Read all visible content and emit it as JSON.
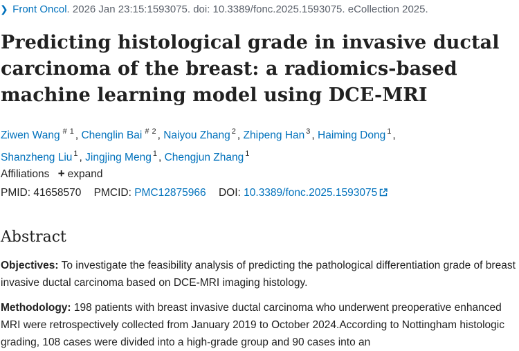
{
  "citation": {
    "journal": "Front Oncol",
    "rest": ". 2026 Jan 23:15:1593075. doi: 10.3389/fonc.2025.1593075. eCollection 2025."
  },
  "title": "Predicting histological grade in invasive ductal carcinoma of the breast: a radiomics-based machine learning model using DCE-MRI",
  "authors": [
    {
      "name": "Ziwen Wang",
      "sup": "1",
      "equal": "#"
    },
    {
      "name": "Chenglin Bai",
      "sup": "2",
      "equal": "#"
    },
    {
      "name": "Naiyou Zhang",
      "sup": "2",
      "equal": ""
    },
    {
      "name": "Zhipeng Han",
      "sup": "3",
      "equal": ""
    },
    {
      "name": "Haiming Dong",
      "sup": "1",
      "equal": ""
    },
    {
      "name": "Shanzheng Liu",
      "sup": "1",
      "equal": ""
    },
    {
      "name": "Jingjing Meng",
      "sup": "1",
      "equal": ""
    },
    {
      "name": "Chengjun Zhang",
      "sup": "1",
      "equal": ""
    }
  ],
  "affiliations": {
    "label": "Affiliations",
    "expand_label": "expand"
  },
  "identifiers": {
    "pmid_label": "PMID:",
    "pmid": "41658570",
    "pmcid_label": "PMCID:",
    "pmcid": "PMC12875966",
    "doi_label": "DOI:",
    "doi": "10.3389/fonc.2025.1593075"
  },
  "abstract": {
    "heading": "Abstract",
    "objectives_label": "Objectives:",
    "objectives_text": " To investigate the feasibility analysis of predicting the pathological differentiation grade of breast invasive ductal carcinoma based on DCE-MRI imaging histology.",
    "methodology_label": "Methodology:",
    "methodology_text": " 198 patients with breast invasive ductal carcinoma who underwent preoperative enhanced MRI were retrospectively collected from January 2019 to October 2024.According to Nottingham histologic grading, 108 cases were divided into a high-grade group and 90 cases into an"
  },
  "colors": {
    "link": "#0071bc",
    "text": "#212121",
    "muted": "#5b616b"
  }
}
